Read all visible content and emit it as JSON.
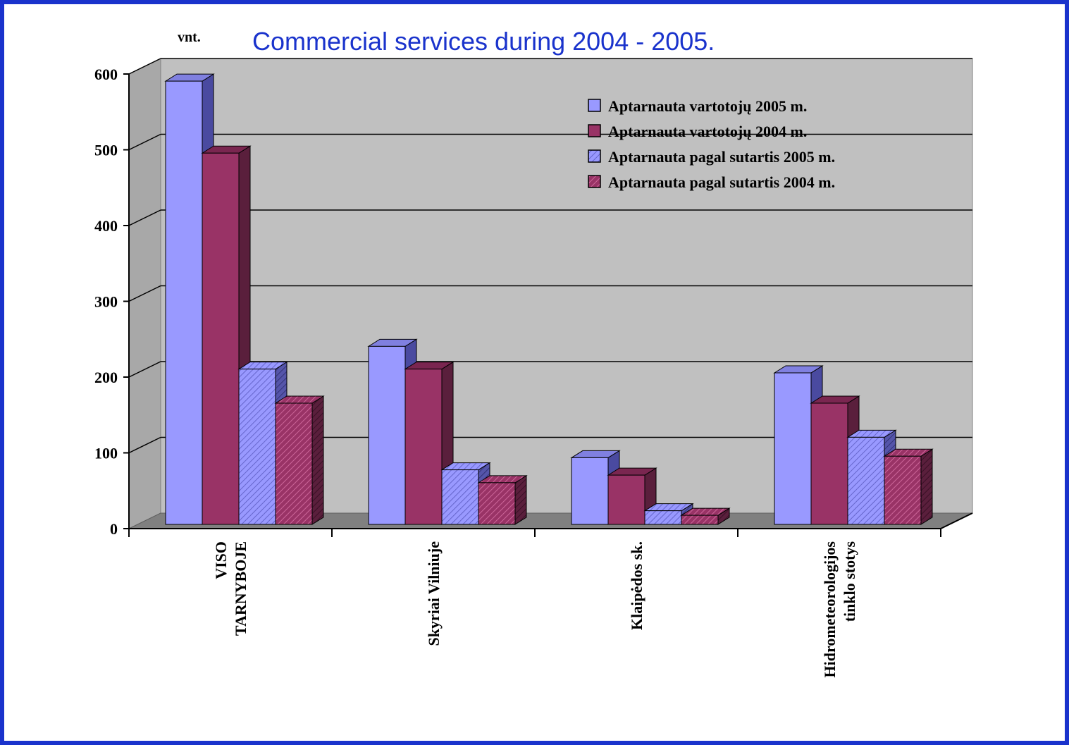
{
  "title": "Commercial services during 2004 - 2005.",
  "unit_label": "vnt.",
  "colors": {
    "frame": "#1a33cc",
    "title": "#1a33cc",
    "wall": "#c0c0c0",
    "floor": "#808080",
    "series_2005_vartotoju": "#9999ff",
    "series_2004_vartotoju": "#993366",
    "series_2005_sutartis": "#9999ff",
    "series_2004_sutartis": "#993366"
  },
  "chart_data": {
    "type": "bar",
    "title": "Commercial services during 2004 - 2005.",
    "ylabel": "vnt.",
    "xlabel": "",
    "ylim": [
      0,
      600
    ],
    "yticks": [
      0,
      100,
      200,
      300,
      400,
      500,
      600
    ],
    "grid": true,
    "legend_position": "top-right",
    "categories": [
      [
        "VISO",
        "TARNYBOJE"
      ],
      [
        "Skyriai Vilniuje"
      ],
      [
        "Klaipėdos sk."
      ],
      [
        "Hidrometeorologijos",
        "tinklo stotys"
      ]
    ],
    "series": [
      {
        "name": "Aptarnauta vartotojų 2005 m.",
        "color": "#9999ff",
        "hatched": false,
        "values": [
          585,
          235,
          88,
          200
        ]
      },
      {
        "name": "Aptarnauta vartotojų 2004 m.",
        "color": "#993366",
        "hatched": false,
        "values": [
          490,
          205,
          65,
          160
        ]
      },
      {
        "name": "Aptarnauta pagal sutartis 2005 m.",
        "color": "#9999ff",
        "hatched": true,
        "values": [
          205,
          72,
          18,
          115
        ]
      },
      {
        "name": "Aptarnauta pagal sutartis 2004 m.",
        "color": "#993366",
        "hatched": true,
        "values": [
          160,
          55,
          12,
          90
        ]
      }
    ]
  }
}
